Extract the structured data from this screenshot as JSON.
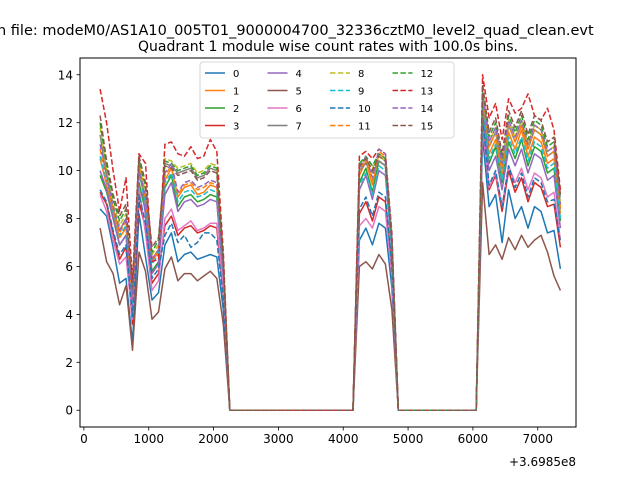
{
  "suptitle": "n file: modeM0/AS1A10_005T01_9000004700_32336cztM0_level2_quad_clean.evt",
  "chart_data": {
    "type": "line",
    "title": "Quadrant 1 module wise count rates with 100.0s bins.",
    "xlabel": "",
    "ylabel": "",
    "x_offset_label": "+3.6985e8",
    "xlim": [
      -60,
      7590
    ],
    "ylim": [
      -0.7,
      14.7
    ],
    "xticks": [
      0,
      1000,
      2000,
      3000,
      4000,
      5000,
      6000,
      7000
    ],
    "yticks": [
      0,
      2,
      4,
      6,
      8,
      10,
      12,
      14
    ],
    "grid": false,
    "legend_location": "top-center",
    "legend_columns": 4,
    "x": [
      250,
      350,
      450,
      550,
      650,
      750,
      850,
      950,
      1050,
      1150,
      1250,
      1350,
      1450,
      1550,
      1650,
      1750,
      1850,
      1950,
      2050,
      2150,
      2250,
      2350,
      2450,
      2550,
      2650,
      2750,
      2850,
      2950,
      3050,
      3150,
      3250,
      3350,
      3450,
      3550,
      3650,
      3750,
      3850,
      3950,
      4050,
      4150,
      4250,
      4350,
      4450,
      4550,
      4650,
      4750,
      4850,
      4950,
      5050,
      5150,
      5250,
      5350,
      5450,
      5550,
      5650,
      5750,
      5850,
      5950,
      6050,
      6150,
      6250,
      6350,
      6450,
      6550,
      6650,
      6750,
      6850,
      6950,
      7050,
      7150,
      7250,
      7350
    ],
    "series": [
      {
        "name": "0",
        "color": "#1f77b4",
        "dash": "solid",
        "values": [
          8.4,
          8.1,
          6.8,
          5.3,
          5.5,
          2.8,
          8.2,
          6.4,
          4.6,
          4.9,
          6.9,
          7.4,
          6.2,
          6.5,
          6.6,
          6.3,
          6.4,
          6.5,
          6.4,
          4.2,
          0,
          0,
          0,
          0,
          0,
          0,
          0,
          0,
          0,
          0,
          0,
          0,
          0,
          0,
          0,
          0,
          0,
          0,
          0,
          0,
          7.1,
          7.6,
          6.9,
          7.8,
          7.6,
          5.1,
          0,
          0,
          0,
          0,
          0,
          0,
          0,
          0,
          0,
          0,
          0,
          0,
          0,
          11.4,
          8.5,
          9.0,
          7.0,
          9.2,
          8.0,
          8.5,
          7.6,
          8.5,
          8.3,
          7.4,
          7.5,
          5.9
        ]
      },
      {
        "name": "1",
        "color": "#ff7f0e",
        "dash": "solid",
        "values": [
          10.5,
          9.4,
          8.2,
          7.2,
          7.6,
          4.5,
          9.9,
          8.7,
          6.2,
          6.6,
          9.6,
          10.1,
          8.9,
          9.3,
          9.4,
          9.0,
          9.1,
          9.4,
          9.3,
          5.8,
          0,
          0,
          0,
          0,
          0,
          0,
          0,
          0,
          0,
          0,
          0,
          0,
          0,
          0,
          0,
          0,
          0,
          0,
          0,
          0,
          9.8,
          10.4,
          9.4,
          10.7,
          10.5,
          7.0,
          0,
          0,
          0,
          0,
          0,
          0,
          0,
          0,
          0,
          0,
          0,
          0,
          0,
          12.9,
          10.7,
          11.3,
          9.8,
          11.6,
          10.9,
          11.7,
          10.6,
          11.4,
          11.2,
          10.3,
          10.5,
          8.2
        ]
      },
      {
        "name": "2",
        "color": "#2ca02c",
        "dash": "solid",
        "values": [
          9.8,
          9.1,
          8.0,
          6.9,
          7.3,
          4.3,
          9.5,
          8.3,
          5.8,
          6.2,
          9.3,
          9.8,
          8.5,
          8.9,
          9.0,
          8.7,
          8.8,
          9.0,
          8.9,
          5.5,
          0,
          0,
          0,
          0,
          0,
          0,
          0,
          0,
          0,
          0,
          0,
          0,
          0,
          0,
          0,
          0,
          0,
          0,
          0,
          0,
          9.5,
          10.1,
          9.1,
          10.4,
          10.2,
          6.8,
          0,
          0,
          0,
          0,
          0,
          0,
          0,
          0,
          0,
          0,
          0,
          0,
          0,
          12.6,
          10.3,
          11.0,
          9.5,
          11.2,
          10.5,
          11.3,
          10.2,
          11.0,
          10.8,
          9.9,
          10.1,
          7.9
        ]
      },
      {
        "name": "3",
        "color": "#d62728",
        "dash": "solid",
        "values": [
          9.1,
          8.6,
          7.4,
          6.3,
          6.8,
          3.6,
          8.7,
          7.6,
          5.3,
          5.7,
          7.7,
          8.1,
          7.3,
          7.6,
          7.7,
          7.4,
          7.5,
          7.7,
          7.6,
          4.8,
          0,
          0,
          0,
          0,
          0,
          0,
          0,
          0,
          0,
          0,
          0,
          0,
          0,
          0,
          0,
          0,
          0,
          0,
          0,
          0,
          8.2,
          8.7,
          7.9,
          8.9,
          8.7,
          5.9,
          0,
          0,
          0,
          0,
          0,
          0,
          0,
          0,
          0,
          0,
          0,
          0,
          0,
          12.0,
          9.2,
          9.8,
          8.3,
          10.0,
          9.1,
          9.7,
          8.7,
          9.5,
          9.3,
          8.5,
          8.6,
          6.8
        ]
      },
      {
        "name": "4",
        "color": "#9467bd",
        "dash": "solid",
        "values": [
          10.0,
          9.2,
          8.0,
          6.9,
          7.3,
          4.2,
          10.6,
          8.1,
          5.7,
          6.1,
          9.0,
          9.5,
          8.3,
          8.7,
          8.8,
          8.5,
          8.6,
          8.8,
          8.7,
          5.4,
          0,
          0,
          0,
          0,
          0,
          0,
          0,
          0,
          0,
          0,
          0,
          0,
          0,
          0,
          0,
          0,
          0,
          0,
          0,
          0,
          9.2,
          9.8,
          8.8,
          10.0,
          9.8,
          6.6,
          0,
          0,
          0,
          0,
          0,
          0,
          0,
          0,
          0,
          0,
          0,
          0,
          0,
          12.4,
          10.0,
          10.6,
          9.2,
          10.9,
          10.2,
          10.9,
          9.9,
          10.7,
          10.5,
          9.6,
          9.8,
          7.6
        ]
      },
      {
        "name": "5",
        "color": "#8c564b",
        "dash": "solid",
        "values": [
          7.6,
          6.2,
          5.7,
          4.4,
          5.2,
          2.5,
          6.6,
          5.8,
          3.8,
          4.1,
          5.9,
          6.4,
          5.4,
          5.7,
          5.7,
          5.4,
          5.6,
          5.8,
          5.5,
          3.6,
          0,
          0,
          0,
          0,
          0,
          0,
          0,
          0,
          0,
          0,
          0,
          0,
          0,
          0,
          0,
          0,
          0,
          0,
          0,
          0,
          6.0,
          6.2,
          5.9,
          6.5,
          6.1,
          4.2,
          0,
          0,
          0,
          0,
          0,
          0,
          0,
          0,
          0,
          0,
          0,
          0,
          0,
          9.5,
          6.5,
          6.9,
          6.3,
          7.2,
          6.7,
          7.3,
          6.8,
          7.1,
          7.3,
          6.6,
          5.6,
          5.0
        ]
      },
      {
        "name": "6",
        "color": "#e377c2",
        "dash": "solid",
        "values": [
          9.0,
          8.3,
          7.1,
          6.1,
          6.4,
          3.8,
          9.3,
          7.4,
          5.0,
          5.4,
          8.0,
          8.4,
          7.5,
          7.7,
          7.9,
          7.5,
          7.6,
          7.8,
          7.8,
          5.0,
          0,
          0,
          0,
          0,
          0,
          0,
          0,
          0,
          0,
          0,
          0,
          0,
          0,
          0,
          0,
          0,
          0,
          0,
          0,
          0,
          7.7,
          8.0,
          7.6,
          8.5,
          8.3,
          5.6,
          0,
          0,
          0,
          0,
          0,
          0,
          0,
          0,
          0,
          0,
          0,
          0,
          0,
          11.8,
          9.3,
          9.9,
          8.5,
          10.2,
          9.5,
          10.1,
          9.2,
          9.9,
          9.7,
          8.9,
          9.1,
          7.1
        ]
      },
      {
        "name": "7",
        "color": "#7f7f7f",
        "dash": "solid",
        "values": [
          11.5,
          9.8,
          8.4,
          7.5,
          8.0,
          4.6,
          10.1,
          8.9,
          6.3,
          6.7,
          10.3,
          10.2,
          9.9,
          10.0,
          10.1,
          9.7,
          9.8,
          10.1,
          10.0,
          6.2,
          0,
          0,
          0,
          0,
          0,
          0,
          0,
          0,
          0,
          0,
          0,
          0,
          0,
          0,
          0,
          0,
          0,
          0,
          0,
          0,
          10.0,
          10.3,
          9.9,
          10.4,
          10.2,
          6.8,
          0,
          0,
          0,
          0,
          0,
          0,
          0,
          0,
          0,
          0,
          0,
          0,
          0,
          12.7,
          11.0,
          11.6,
          10.1,
          11.9,
          11.2,
          11.9,
          10.9,
          11.7,
          11.5,
          10.6,
          10.8,
          8.4
        ]
      },
      {
        "name": "8",
        "color": "#bcbd22",
        "dash": "dashed",
        "values": [
          11.8,
          10.0,
          8.6,
          7.7,
          8.2,
          4.8,
          10.3,
          9.1,
          6.5,
          6.9,
          10.5,
          10.4,
          10.1,
          10.2,
          10.3,
          9.9,
          10.0,
          10.3,
          10.2,
          6.4,
          0,
          0,
          0,
          0,
          0,
          0,
          0,
          0,
          0,
          0,
          0,
          0,
          0,
          0,
          0,
          0,
          0,
          0,
          0,
          0,
          10.2,
          10.5,
          10.1,
          10.6,
          10.4,
          7.0,
          0,
          0,
          0,
          0,
          0,
          0,
          0,
          0,
          0,
          0,
          0,
          0,
          0,
          13.0,
          11.2,
          11.8,
          10.3,
          12.1,
          11.4,
          12.1,
          11.1,
          11.9,
          11.7,
          10.8,
          11.0,
          8.6
        ]
      },
      {
        "name": "9",
        "color": "#17becf",
        "dash": "dashed",
        "values": [
          10.6,
          9.5,
          8.3,
          7.3,
          7.7,
          4.4,
          10.0,
          8.6,
          6.1,
          6.5,
          9.5,
          9.9,
          8.7,
          9.1,
          9.2,
          8.9,
          9.0,
          9.2,
          9.1,
          5.7,
          0,
          0,
          0,
          0,
          0,
          0,
          0,
          0,
          0,
          0,
          0,
          0,
          0,
          0,
          0,
          0,
          0,
          0,
          0,
          0,
          9.4,
          9.9,
          9.0,
          10.2,
          10.0,
          6.7,
          0,
          0,
          0,
          0,
          0,
          0,
          0,
          0,
          0,
          0,
          0,
          0,
          0,
          12.5,
          10.5,
          11.1,
          9.6,
          11.4,
          10.7,
          11.4,
          10.4,
          11.2,
          11.0,
          10.1,
          10.3,
          8.0
        ]
      },
      {
        "name": "10",
        "color": "#1f77b4",
        "dash": "dashed",
        "values": [
          9.2,
          8.7,
          7.5,
          6.5,
          6.9,
          3.9,
          9.0,
          7.8,
          5.5,
          5.9,
          7.3,
          7.8,
          7.0,
          7.3,
          6.8,
          7.0,
          7.4,
          7.4,
          7.1,
          4.7,
          0,
          0,
          0,
          0,
          0,
          0,
          0,
          0,
          0,
          0,
          0,
          0,
          0,
          0,
          0,
          0,
          0,
          0,
          0,
          0,
          8.4,
          8.9,
          8.1,
          9.1,
          8.9,
          6.0,
          0,
          0,
          0,
          0,
          0,
          0,
          0,
          0,
          0,
          0,
          0,
          0,
          0,
          12.2,
          9.4,
          10.0,
          8.5,
          10.2,
          9.3,
          9.9,
          8.9,
          9.7,
          9.5,
          8.7,
          8.8,
          7.0
        ]
      },
      {
        "name": "11",
        "color": "#ff7f0e",
        "dash": "dashed",
        "values": [
          10.9,
          9.6,
          8.4,
          7.4,
          7.9,
          4.6,
          10.2,
          8.8,
          6.3,
          6.7,
          9.8,
          10.2,
          9.0,
          9.4,
          9.5,
          9.2,
          9.3,
          9.5,
          9.4,
          5.9,
          0,
          0,
          0,
          0,
          0,
          0,
          0,
          0,
          0,
          0,
          0,
          0,
          0,
          0,
          0,
          0,
          0,
          0,
          0,
          0,
          10.0,
          10.5,
          9.6,
          10.8,
          10.6,
          7.1,
          0,
          0,
          0,
          0,
          0,
          0,
          0,
          0,
          0,
          0,
          0,
          0,
          0,
          13.1,
          11.0,
          11.6,
          10.1,
          11.9,
          11.2,
          11.9,
          10.9,
          11.7,
          11.5,
          10.6,
          10.8,
          8.4
        ]
      },
      {
        "name": "12",
        "color": "#2ca02c",
        "dash": "dashed",
        "values": [
          12.0,
          10.2,
          8.8,
          7.9,
          8.4,
          5.0,
          10.5,
          9.3,
          6.6,
          7.1,
          10.4,
          10.3,
          10.0,
          10.1,
          10.2,
          9.8,
          9.9,
          10.2,
          10.1,
          6.3,
          0,
          0,
          0,
          0,
          0,
          0,
          0,
          0,
          0,
          0,
          0,
          0,
          0,
          0,
          0,
          0,
          0,
          0,
          0,
          0,
          10.3,
          10.6,
          10.2,
          10.7,
          10.5,
          7.1,
          0,
          0,
          0,
          0,
          0,
          0,
          0,
          0,
          0,
          0,
          0,
          0,
          0,
          13.3,
          11.4,
          12.0,
          10.5,
          12.3,
          11.6,
          12.3,
          11.3,
          12.1,
          11.9,
          11.0,
          11.2,
          8.8
        ]
      },
      {
        "name": "13",
        "color": "#d62728",
        "dash": "dashed",
        "values": [
          13.4,
          12.0,
          10.0,
          8.3,
          9.7,
          5.4,
          10.7,
          10.3,
          6.2,
          6.3,
          11.1,
          11.2,
          10.7,
          10.6,
          11.0,
          10.5,
          10.6,
          11.3,
          10.8,
          6.6,
          0,
          0,
          0,
          0,
          0,
          0,
          0,
          0,
          0,
          0,
          0,
          0,
          0,
          0,
          0,
          0,
          0,
          0,
          0,
          0,
          10.6,
          10.8,
          10.5,
          10.9,
          10.7,
          7.4,
          0,
          0,
          0,
          0,
          0,
          0,
          0,
          0,
          0,
          0,
          0,
          0,
          0,
          14.0,
          12.2,
          12.8,
          11.3,
          13.0,
          12.4,
          12.6,
          13.2,
          12.3,
          12.1,
          12.6,
          11.7,
          9.2
        ]
      },
      {
        "name": "14",
        "color": "#9467bd",
        "dash": "dashed",
        "values": [
          11.1,
          9.8,
          8.5,
          7.5,
          8.0,
          4.6,
          10.0,
          8.9,
          6.3,
          6.7,
          9.9,
          10.3,
          9.1,
          9.5,
          9.6,
          9.3,
          9.4,
          9.6,
          9.5,
          5.9,
          0,
          0,
          0,
          0,
          0,
          0,
          0,
          0,
          0,
          0,
          0,
          0,
          0,
          0,
          0,
          0,
          0,
          0,
          0,
          0,
          10.1,
          10.6,
          9.7,
          10.9,
          10.7,
          7.2,
          0,
          0,
          0,
          0,
          0,
          0,
          0,
          0,
          0,
          0,
          0,
          0,
          0,
          13.2,
          11.2,
          11.8,
          10.3,
          12.1,
          11.4,
          12.1,
          11.1,
          11.9,
          11.7,
          10.8,
          11.0,
          8.6
        ]
      },
      {
        "name": "15",
        "color": "#8c564b",
        "dash": "dashed",
        "values": [
          12.3,
          10.4,
          9.0,
          8.1,
          8.6,
          5.1,
          10.6,
          9.5,
          6.8,
          7.2,
          10.2,
          10.1,
          9.8,
          9.9,
          10.0,
          9.6,
          9.7,
          10.0,
          9.9,
          6.2,
          0,
          0,
          0,
          0,
          0,
          0,
          0,
          0,
          0,
          0,
          0,
          0,
          0,
          0,
          0,
          0,
          0,
          0,
          0,
          0,
          10.2,
          10.5,
          10.0,
          10.6,
          10.4,
          7.0,
          0,
          0,
          0,
          0,
          0,
          0,
          0,
          0,
          0,
          0,
          0,
          0,
          0,
          13.6,
          11.6,
          12.2,
          10.7,
          12.5,
          11.8,
          12.5,
          11.5,
          12.3,
          12.1,
          11.2,
          11.4,
          9.0
        ]
      }
    ]
  }
}
